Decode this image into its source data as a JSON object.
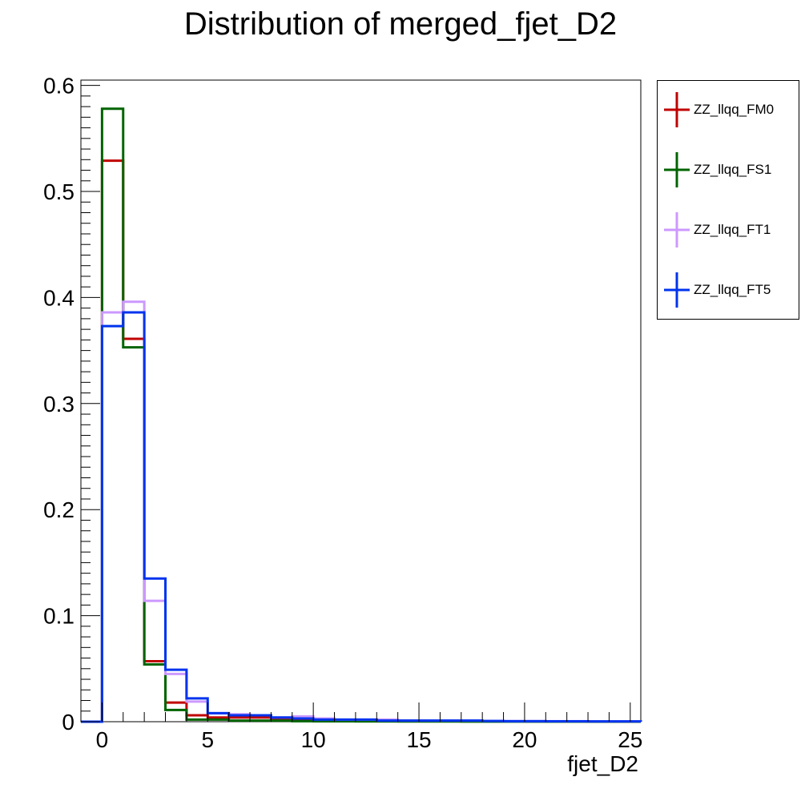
{
  "chart_data": {
    "type": "step-histogram",
    "title": "Distribution of merged_fjet_D2",
    "xlabel": "fjet_D2",
    "ylabel": "",
    "xlim": [
      -1,
      25.5
    ],
    "ylim": [
      0,
      0.605
    ],
    "xticks": [
      0,
      5,
      10,
      15,
      20,
      25
    ],
    "yticks": [
      0,
      0.1,
      0.2,
      0.3,
      0.4,
      0.5,
      0.6
    ],
    "ytick_labels": [
      "0",
      "0.1",
      "0.2",
      "0.3",
      "0.4",
      "0.5",
      "0.6"
    ],
    "bin_edges": [
      -1,
      0,
      1,
      2,
      3,
      4,
      5,
      6,
      7,
      8,
      9,
      10,
      11,
      12,
      13,
      14,
      15,
      16,
      17,
      18,
      19,
      20,
      21,
      22,
      23,
      24,
      25.5
    ],
    "legend_position": "right, outside plot (top)",
    "series": [
      {
        "name": "ZZ_llqq_FM0",
        "color": "#c00000",
        "values": [
          0,
          0.529,
          0.361,
          0.057,
          0.018,
          0.006,
          0.004,
          0.004,
          0.004,
          0.003,
          0.002,
          0.002,
          0.001,
          0.001,
          0.001,
          0.001,
          0.0006,
          0.0006,
          0.0004,
          0.0004,
          0.0004,
          0.0003,
          0.0003,
          0.0003,
          0.0002,
          0.0002
        ]
      },
      {
        "name": "ZZ_llqq_FS1",
        "color": "#006400",
        "values": [
          0,
          0.578,
          0.353,
          0.054,
          0.011,
          0.002,
          0.002,
          0.001,
          0.001,
          0.001,
          0.0005,
          0.0004,
          0.0004,
          0.0003,
          0.0003,
          0.0002,
          0.0002,
          0.0002,
          0.0001,
          0.0001,
          0.0001,
          0.0001,
          0.0001,
          0.0001,
          0.0001,
          0.0001
        ]
      },
      {
        "name": "ZZ_llqq_FT1",
        "color": "#cc99ff",
        "values": [
          0,
          0.386,
          0.396,
          0.114,
          0.045,
          0.019,
          0.008,
          0.007,
          0.006,
          0.004,
          0.005,
          0.003,
          0.002,
          0.002,
          0.002,
          0.001,
          0.001,
          0.001,
          0.001,
          0.0008,
          0.0006,
          0.0006,
          0.0005,
          0.0005,
          0.0004,
          0.0004
        ]
      },
      {
        "name": "ZZ_llqq_FT5",
        "color": "#0033ee",
        "values": [
          0,
          0.373,
          0.386,
          0.135,
          0.049,
          0.022,
          0.008,
          0.006,
          0.006,
          0.004,
          0.003,
          0.002,
          0.002,
          0.002,
          0.001,
          0.001,
          0.001,
          0.001,
          0.001,
          0.0007,
          0.0005,
          0.0005,
          0.0004,
          0.0004,
          0.0003,
          0.0003
        ]
      }
    ]
  }
}
